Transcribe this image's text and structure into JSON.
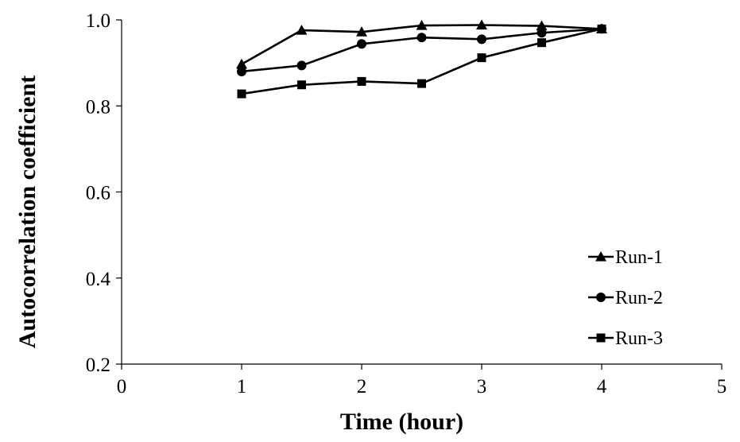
{
  "chart_data": {
    "type": "line",
    "title": "",
    "xlabel": "Time (hour)",
    "ylabel": "Autocorrelation coefficient",
    "xlim": [
      0,
      5
    ],
    "ylim": [
      0.2,
      1.0
    ],
    "x_ticks": [
      "0",
      "1",
      "2",
      "3",
      "4",
      "5"
    ],
    "y_ticks": [
      "0.2",
      "0.4",
      "0.6",
      "0.8",
      "1.0"
    ],
    "grid": false,
    "legend_position": "bottom-right",
    "series": [
      {
        "name": "Run-1",
        "marker": "triangle",
        "color": "#000000",
        "x": [
          1,
          1.5,
          2,
          2.5,
          3,
          3.5,
          4
        ],
        "y": [
          0.897,
          0.976,
          0.972,
          0.987,
          0.988,
          0.986,
          0.979
        ]
      },
      {
        "name": "Run-2",
        "marker": "circle",
        "color": "#000000",
        "x": [
          1,
          1.5,
          2,
          2.5,
          3,
          3.5,
          4
        ],
        "y": [
          0.88,
          0.894,
          0.944,
          0.959,
          0.955,
          0.97,
          0.979
        ]
      },
      {
        "name": "Run-3",
        "marker": "square",
        "color": "#000000",
        "x": [
          1,
          1.5,
          2,
          2.5,
          3,
          3.5,
          4
        ],
        "y": [
          0.828,
          0.849,
          0.857,
          0.852,
          0.912,
          0.947,
          0.979
        ]
      }
    ]
  }
}
